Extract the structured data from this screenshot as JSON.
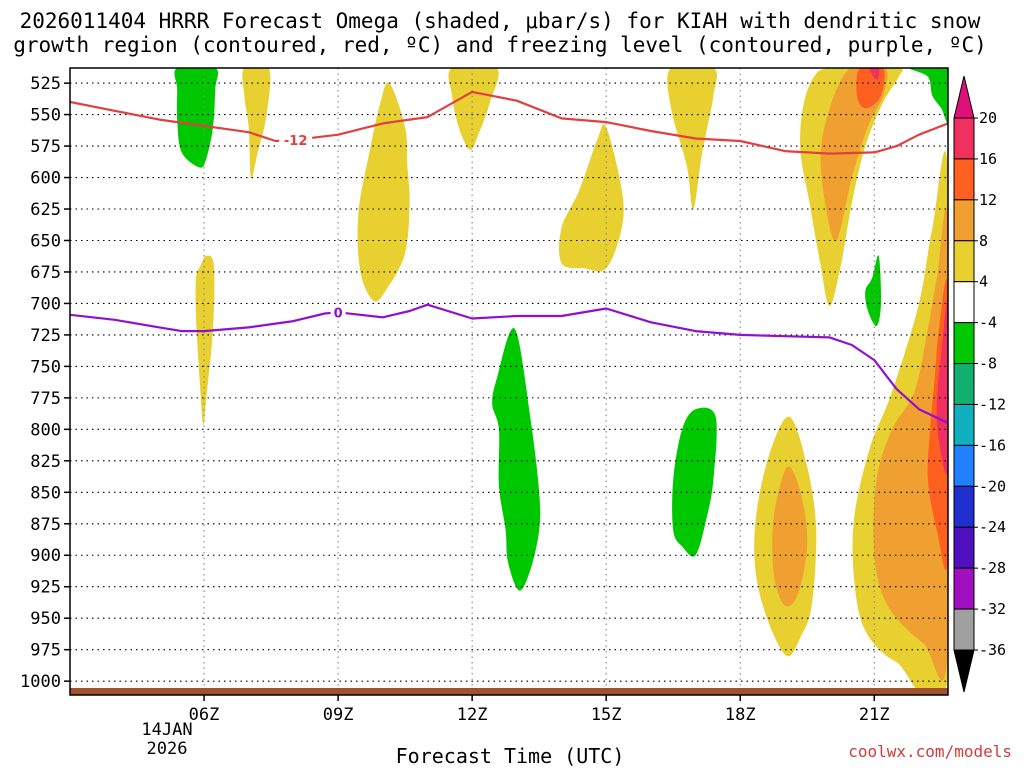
{
  "chart_data": {
    "type": "heatmap",
    "title_line1": "2026011404 HRRR Forecast Omega (shaded, μbar/s) for KIAH with dendritic snow",
    "title_line2": "growth region (contoured, red, ºC) and freezing level (contoured, purple, ºC)",
    "xlabel": "Forecast Time (UTC)",
    "credit": "coolwx.com/models",
    "date_label_1": "14JAN",
    "date_label_2": "2026",
    "x_range_hours": [
      3.0,
      22.65
    ],
    "y_levels": [
      525,
      550,
      575,
      600,
      625,
      650,
      675,
      700,
      725,
      750,
      775,
      800,
      825,
      850,
      875,
      900,
      925,
      950,
      975,
      1000
    ],
    "y_range_hpa": [
      513,
      1011
    ],
    "x_ticks": [
      {
        "hour": 6,
        "label": "06Z"
      },
      {
        "hour": 9,
        "label": "09Z"
      },
      {
        "hour": 12,
        "label": "12Z"
      },
      {
        "hour": 15,
        "label": "15Z"
      },
      {
        "hour": 18,
        "label": "18Z"
      },
      {
        "hour": 21,
        "label": "21Z"
      }
    ],
    "colorbar": {
      "labels": [
        "20",
        "16",
        "12",
        "8",
        "4",
        "-4",
        "-8",
        "-12",
        "-16",
        "-20",
        "-24",
        "-28",
        "-32",
        "-36"
      ],
      "colors_top_down": [
        "#f0305e",
        "#ff6020",
        "#f0a030",
        "#e8d030",
        "#ffffff",
        "#00c800",
        "#10b070",
        "#10b0c0",
        "#2080ff",
        "#2030d0",
        "#5010c0",
        "#a010c0",
        "#a0a0a0"
      ],
      "top_arrow_color": "#e0107a",
      "bottom_arrow_color": "#000000"
    },
    "contours": [
      {
        "name": "dendritic-12C",
        "label": "-12",
        "color": "#e04040",
        "label_at": [
          8.05,
          570
        ],
        "points": [
          [
            3.0,
            540
          ],
          [
            4.0,
            547
          ],
          [
            5.0,
            554
          ],
          [
            6.0,
            559
          ],
          [
            7.0,
            564
          ],
          [
            7.6,
            571
          ],
          [
            8.05,
            570
          ],
          [
            9.0,
            566
          ],
          [
            10.0,
            557
          ],
          [
            11.0,
            552
          ],
          [
            12.0,
            532
          ],
          [
            13.0,
            539
          ],
          [
            14.0,
            553
          ],
          [
            15.0,
            556
          ],
          [
            16.0,
            563
          ],
          [
            17.0,
            569
          ],
          [
            18.0,
            571
          ],
          [
            19.0,
            579
          ],
          [
            20.0,
            581
          ],
          [
            21.0,
            580
          ],
          [
            21.5,
            575
          ],
          [
            22.0,
            566
          ],
          [
            22.65,
            557
          ]
        ]
      },
      {
        "name": "freezing-0C",
        "label": "0",
        "color": "#9010d0",
        "label_at": [
          9.0,
          707
        ],
        "points": [
          [
            3.0,
            709
          ],
          [
            4.0,
            713
          ],
          [
            5.0,
            719
          ],
          [
            5.5,
            722
          ],
          [
            6.0,
            722
          ],
          [
            7.0,
            719
          ],
          [
            8.0,
            714
          ],
          [
            8.7,
            708
          ],
          [
            9.0,
            707
          ],
          [
            10.0,
            711
          ],
          [
            10.6,
            706
          ],
          [
            11.0,
            701
          ],
          [
            12.0,
            712
          ],
          [
            13.0,
            710
          ],
          [
            14.0,
            710
          ],
          [
            15.0,
            704
          ],
          [
            16.0,
            715
          ],
          [
            17.0,
            722
          ],
          [
            18.0,
            725
          ],
          [
            19.0,
            726
          ],
          [
            20.0,
            727
          ],
          [
            20.5,
            733
          ],
          [
            21.0,
            745
          ],
          [
            21.5,
            768
          ],
          [
            22.0,
            784
          ],
          [
            22.65,
            795
          ]
        ]
      }
    ],
    "shaded_regions": [
      {
        "name": "green-06z-upper",
        "color": "#00c800",
        "points": [
          [
            5.4,
            513
          ],
          [
            6.25,
            513
          ],
          [
            6.25,
            530
          ],
          [
            6.2,
            560
          ],
          [
            6.05,
            585
          ],
          [
            5.9,
            592
          ],
          [
            5.5,
            580
          ],
          [
            5.4,
            555
          ],
          [
            5.4,
            530
          ]
        ]
      },
      {
        "name": "yellow-06z-lower",
        "color": "#e8d030",
        "points": [
          [
            5.92,
            670
          ],
          [
            6.05,
            662
          ],
          [
            6.22,
            670
          ],
          [
            6.2,
            720
          ],
          [
            6.05,
            775
          ],
          [
            5.98,
            796
          ],
          [
            5.9,
            760
          ],
          [
            5.82,
            710
          ],
          [
            5.82,
            680
          ]
        ]
      },
      {
        "name": "yellow-07z",
        "color": "#e8d030",
        "points": [
          [
            6.9,
            513
          ],
          [
            7.45,
            513
          ],
          [
            7.4,
            550
          ],
          [
            7.2,
            580
          ],
          [
            7.05,
            600
          ],
          [
            7.0,
            560
          ],
          [
            6.9,
            535
          ]
        ]
      },
      {
        "name": "yellow-10z",
        "color": "#e8d030",
        "points": [
          [
            10.5,
            560
          ],
          [
            10.15,
            525
          ],
          [
            9.95,
            540
          ],
          [
            9.7,
            580
          ],
          [
            9.45,
            630
          ],
          [
            9.5,
            675
          ],
          [
            9.8,
            698
          ],
          [
            10.1,
            688
          ],
          [
            10.5,
            660
          ],
          [
            10.6,
            620
          ],
          [
            10.55,
            590
          ]
        ]
      },
      {
        "name": "yellow-12z",
        "color": "#e8d030",
        "points": [
          [
            11.55,
            513
          ],
          [
            12.55,
            513
          ],
          [
            12.4,
            540
          ],
          [
            12.15,
            565
          ],
          [
            11.95,
            578
          ],
          [
            11.7,
            560
          ],
          [
            11.55,
            535
          ]
        ]
      },
      {
        "name": "yellow-15z",
        "color": "#e8d030",
        "points": [
          [
            14.0,
            640
          ],
          [
            14.4,
            610
          ],
          [
            14.8,
            570
          ],
          [
            15.0,
            560
          ],
          [
            15.35,
            610
          ],
          [
            15.35,
            640
          ],
          [
            15.0,
            672
          ],
          [
            14.5,
            672
          ],
          [
            14.0,
            668
          ]
        ]
      },
      {
        "name": "yellow-1730z",
        "color": "#e8d030",
        "points": [
          [
            16.45,
            513
          ],
          [
            17.4,
            513
          ],
          [
            17.4,
            535
          ],
          [
            17.15,
            580
          ],
          [
            16.95,
            625
          ],
          [
            16.8,
            590
          ],
          [
            16.45,
            545
          ]
        ]
      },
      {
        "name": "yellow-20z",
        "color": "#e8d030",
        "points": [
          [
            20.05,
            513
          ],
          [
            21.5,
            513
          ],
          [
            21.55,
            520
          ],
          [
            21.2,
            540
          ],
          [
            20.8,
            575
          ],
          [
            20.5,
            620
          ],
          [
            20.25,
            670
          ],
          [
            20.0,
            702
          ],
          [
            19.8,
            670
          ],
          [
            19.55,
            620
          ],
          [
            19.35,
            580
          ],
          [
            19.4,
            545
          ],
          [
            19.65,
            520
          ]
        ]
      },
      {
        "name": "orange-20z",
        "color": "#f0a030",
        "points": [
          [
            20.55,
            513
          ],
          [
            21.25,
            513
          ],
          [
            21.2,
            535
          ],
          [
            20.85,
            560
          ],
          [
            20.5,
            600
          ],
          [
            20.15,
            650
          ],
          [
            19.9,
            620
          ],
          [
            19.8,
            580
          ],
          [
            20.0,
            545
          ],
          [
            20.3,
            520
          ]
        ]
      },
      {
        "name": "darkorange-2030z",
        "color": "#ff6020",
        "points": [
          [
            20.7,
            513
          ],
          [
            21.2,
            513
          ],
          [
            21.15,
            535
          ],
          [
            20.85,
            545
          ],
          [
            20.65,
            540
          ],
          [
            20.6,
            525
          ]
        ]
      },
      {
        "name": "red-21z",
        "color": "#f0305e",
        "points": [
          [
            20.9,
            513
          ],
          [
            21.1,
            513
          ],
          [
            21.08,
            522
          ],
          [
            20.98,
            520
          ]
        ]
      },
      {
        "name": "green-22z-top",
        "color": "#00c800",
        "points": [
          [
            21.8,
            513
          ],
          [
            22.65,
            513
          ],
          [
            22.65,
            555
          ],
          [
            22.5,
            545
          ],
          [
            22.3,
            535
          ],
          [
            22.2,
            520
          ]
        ]
      },
      {
        "name": "green-13z",
        "color": "#00c800",
        "points": [
          [
            12.55,
            760
          ],
          [
            12.95,
            720
          ],
          [
            13.3,
            790
          ],
          [
            13.5,
            850
          ],
          [
            13.5,
            880
          ],
          [
            13.3,
            912
          ],
          [
            13.05,
            928
          ],
          [
            12.8,
            905
          ],
          [
            12.75,
            880
          ],
          [
            12.6,
            845
          ],
          [
            12.6,
            800
          ],
          [
            12.45,
            780
          ]
        ]
      },
      {
        "name": "green-1630z",
        "color": "#00c800",
        "points": [
          [
            16.5,
            840
          ],
          [
            16.7,
            800
          ],
          [
            17.0,
            784
          ],
          [
            17.45,
            790
          ],
          [
            17.4,
            840
          ],
          [
            17.25,
            870
          ],
          [
            17.0,
            900
          ],
          [
            16.7,
            893
          ],
          [
            16.5,
            880
          ]
        ]
      },
      {
        "name": "green-21z",
        "color": "#00c800",
        "points": [
          [
            20.95,
            680
          ],
          [
            21.1,
            662
          ],
          [
            21.15,
            700
          ],
          [
            21.05,
            718
          ],
          [
            20.85,
            705
          ],
          [
            20.8,
            690
          ]
        ]
      },
      {
        "name": "yellow-19z",
        "color": "#e8d030",
        "points": [
          [
            18.35,
            870
          ],
          [
            18.65,
            820
          ],
          [
            19.1,
            790
          ],
          [
            19.5,
            830
          ],
          [
            19.7,
            880
          ],
          [
            19.6,
            940
          ],
          [
            19.35,
            965
          ],
          [
            19.05,
            980
          ],
          [
            18.65,
            955
          ],
          [
            18.35,
            915
          ]
        ]
      },
      {
        "name": "orange-19z",
        "color": "#f0a030",
        "points": [
          [
            18.75,
            870
          ],
          [
            19.05,
            830
          ],
          [
            19.35,
            850
          ],
          [
            19.5,
            890
          ],
          [
            19.3,
            930
          ],
          [
            19.0,
            940
          ],
          [
            18.75,
            915
          ]
        ]
      },
      {
        "name": "yellow-22z",
        "color": "#e8d030",
        "points": [
          [
            22.65,
            600
          ],
          [
            22.3,
            640
          ],
          [
            22.0,
            700
          ],
          [
            21.4,
            770
          ],
          [
            20.9,
            815
          ],
          [
            20.55,
            870
          ],
          [
            20.55,
            920
          ],
          [
            20.8,
            960
          ],
          [
            21.5,
            985
          ],
          [
            22.65,
            995
          ]
        ]
      },
      {
        "name": "orange-22z",
        "color": "#f0a030",
        "points": [
          [
            22.65,
            640
          ],
          [
            22.4,
            680
          ],
          [
            22.2,
            720
          ],
          [
            21.9,
            770
          ],
          [
            21.4,
            800
          ],
          [
            21.05,
            840
          ],
          [
            21.0,
            900
          ],
          [
            21.3,
            940
          ],
          [
            22.1,
            970
          ],
          [
            22.65,
            975
          ]
        ]
      },
      {
        "name": "darkorange-22z",
        "color": "#ff6020",
        "points": [
          [
            22.65,
            690
          ],
          [
            22.45,
            720
          ],
          [
            22.35,
            760
          ],
          [
            22.25,
            800
          ],
          [
            22.2,
            840
          ],
          [
            22.4,
            880
          ],
          [
            22.65,
            900
          ]
        ]
      },
      {
        "name": "red-2230z",
        "color": "#f0305e",
        "points": [
          [
            22.65,
            700
          ],
          [
            22.5,
            740
          ],
          [
            22.4,
            780
          ],
          [
            22.45,
            810
          ],
          [
            22.65,
            830
          ]
        ]
      }
    ]
  }
}
